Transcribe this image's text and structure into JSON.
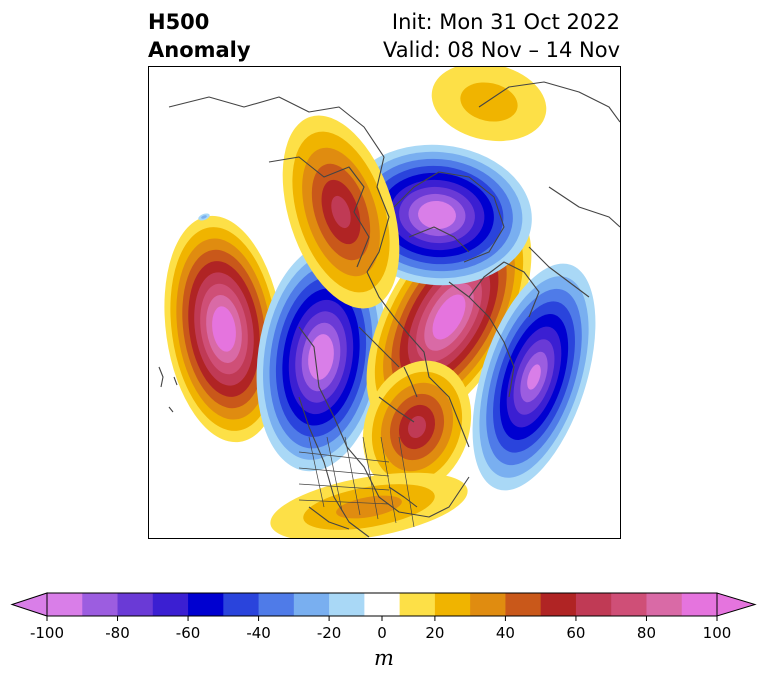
{
  "title": {
    "left_line1": "H500",
    "left_line2": "Anomaly",
    "right_line1": "Init: Mon 31 Oct 2022",
    "right_line2": "Valid: 08 Nov – 14 Nov"
  },
  "colorbar": {
    "unit": "m",
    "levels": [
      -100,
      -90,
      -80,
      -70,
      -60,
      -50,
      -40,
      -30,
      -20,
      -10,
      10,
      20,
      30,
      40,
      50,
      60,
      70,
      80,
      90,
      100
    ],
    "tick_values": [
      -100,
      -80,
      -60,
      -40,
      -20,
      0,
      20,
      40,
      60,
      80,
      100
    ],
    "tick_labels": [
      "-100",
      "-80",
      "-60",
      "-40",
      "-20",
      "0",
      "20",
      "40",
      "60",
      "80",
      "100"
    ],
    "extend": "both",
    "under_color": "#d97ee8",
    "over_color": "#e574de",
    "neutral_color": "#ffffff",
    "colors": [
      "#d97ee8",
      "#9c5de0",
      "#6a3ad6",
      "#3b1fd2",
      "#0000d0",
      "#2a44dc",
      "#4f7be8",
      "#79aff0",
      "#a9d8f6",
      "#ffffff",
      "#fde047",
      "#f0b400",
      "#e08c10",
      "#c9581a",
      "#b02424",
      "#c03a55",
      "#cf4f77",
      "#d96aa6",
      "#e574de"
    ]
  },
  "map": {
    "projection": "polar stereographic, North America / North Atlantic",
    "field": "500 hPa geopotential height anomaly",
    "features": [
      {
        "name": "positive-anomaly-north-pacific",
        "sign": "positive",
        "max_m": 100
      },
      {
        "name": "negative-anomaly-west-coast",
        "sign": "negative",
        "min_m": -100
      },
      {
        "name": "positive-anomaly-east-canada-greenland",
        "sign": "positive",
        "max_m": 100
      },
      {
        "name": "negative-anomaly-central-atlantic",
        "sign": "negative",
        "min_m": -90
      },
      {
        "name": "negative-anomaly-siberia",
        "sign": "negative",
        "min_m": -100
      },
      {
        "name": "positive-anomaly-east-siberia",
        "sign": "positive",
        "max_m": 60
      },
      {
        "name": "positive-anomaly-arctic-ocean",
        "sign": "positive",
        "max_m": 20
      },
      {
        "name": "positive-anomaly-eastern-us",
        "sign": "positive",
        "max_m": 30
      }
    ]
  }
}
